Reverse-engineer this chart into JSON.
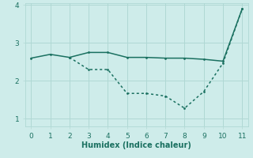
{
  "xlabel": "Humidex (Indice chaleur)",
  "background_color": "#ceecea",
  "line_color": "#1a7060",
  "grid_color": "#b0d8d4",
  "x_upper": [
    0,
    1,
    2,
    3,
    4,
    5,
    6,
    7,
    8,
    9,
    10,
    11
  ],
  "y_upper": [
    2.6,
    2.7,
    2.62,
    2.75,
    2.75,
    2.62,
    2.62,
    2.6,
    2.6,
    2.57,
    2.52,
    3.9
  ],
  "x_lower": [
    2,
    3,
    4,
    5,
    6,
    7,
    8,
    9,
    10,
    11
  ],
  "y_lower": [
    2.62,
    2.3,
    2.3,
    1.67,
    1.67,
    1.6,
    1.28,
    1.72,
    2.47,
    3.9
  ],
  "xlim": [
    0,
    11
  ],
  "ylim": [
    0.8,
    4.05
  ],
  "yticks": [
    1,
    2,
    3,
    4
  ],
  "xticks": [
    0,
    1,
    2,
    3,
    4,
    5,
    6,
    7,
    8,
    9,
    10,
    11
  ],
  "tick_fontsize": 6.5,
  "xlabel_fontsize": 7
}
